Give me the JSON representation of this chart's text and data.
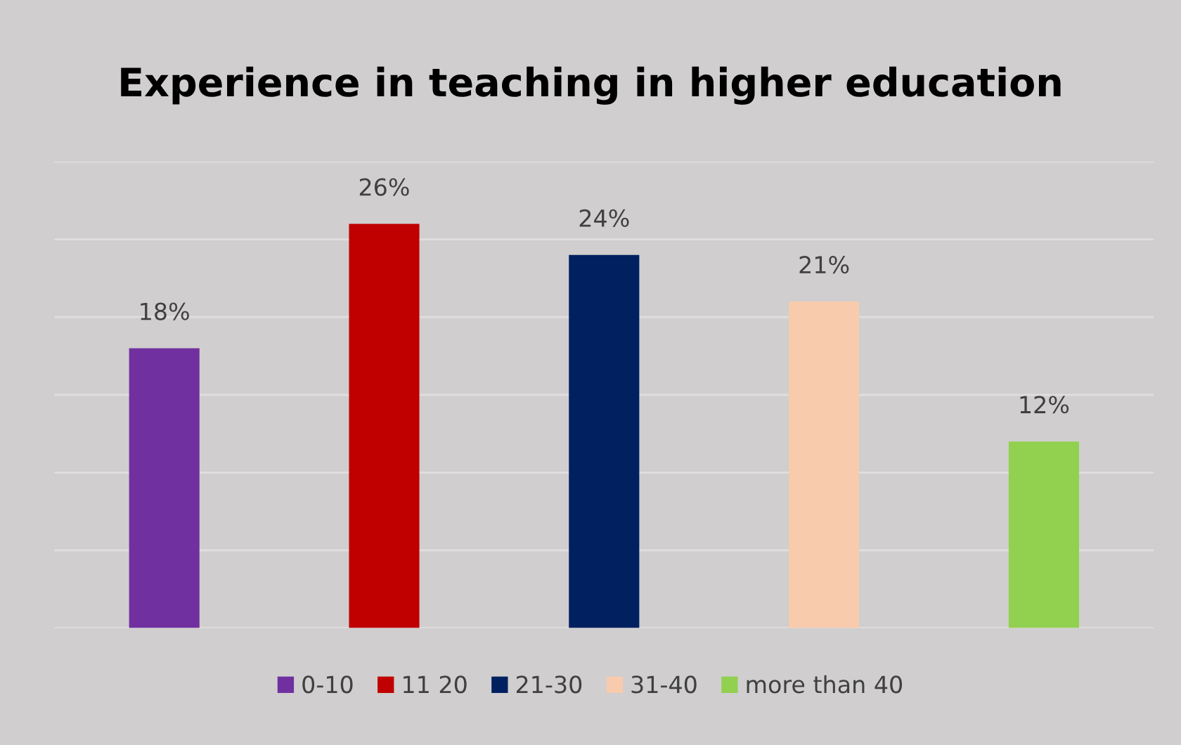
{
  "chart_data": {
    "type": "bar",
    "title": "Experience in teaching in higher education",
    "categories": [
      null,
      null,
      null,
      null,
      null
    ],
    "stacked": true,
    "series": [
      {
        "name": "0-10",
        "color": "#7030a0",
        "values": [
          18,
          0,
          0,
          0,
          0
        ],
        "value_labels": [
          "18%",
          null,
          null,
          null,
          null
        ]
      },
      {
        "name": "11 20",
        "color": "#c00000",
        "values": [
          0,
          26,
          0,
          0,
          0
        ],
        "value_labels": [
          null,
          "26%",
          null,
          null,
          null
        ]
      },
      {
        "name": "21-30",
        "color": "#002060",
        "values": [
          0,
          0,
          24,
          0,
          0
        ],
        "value_labels": [
          null,
          null,
          "24%",
          null,
          null
        ]
      },
      {
        "name": "31-40",
        "color": "#f8cbad",
        "values": [
          0,
          0,
          0,
          21,
          0
        ],
        "value_labels": [
          null,
          null,
          null,
          "21%",
          null
        ]
      },
      {
        "name": "more than 40",
        "color": "#92d050",
        "values": [
          0,
          0,
          0,
          0,
          12
        ],
        "value_labels": [
          null,
          null,
          null,
          null,
          "12%"
        ]
      }
    ],
    "ylim": [
      0,
      30
    ],
    "yticks": [
      {
        "value": 0,
        "label": null
      },
      {
        "value": 5,
        "label": null
      },
      {
        "value": 10,
        "label": null
      },
      {
        "value": 15,
        "label": null
      },
      {
        "value": 20,
        "label": null
      },
      {
        "value": 25,
        "label": null
      },
      {
        "value": 30,
        "label": null
      }
    ],
    "grid": "y",
    "legend": "bottom"
  }
}
